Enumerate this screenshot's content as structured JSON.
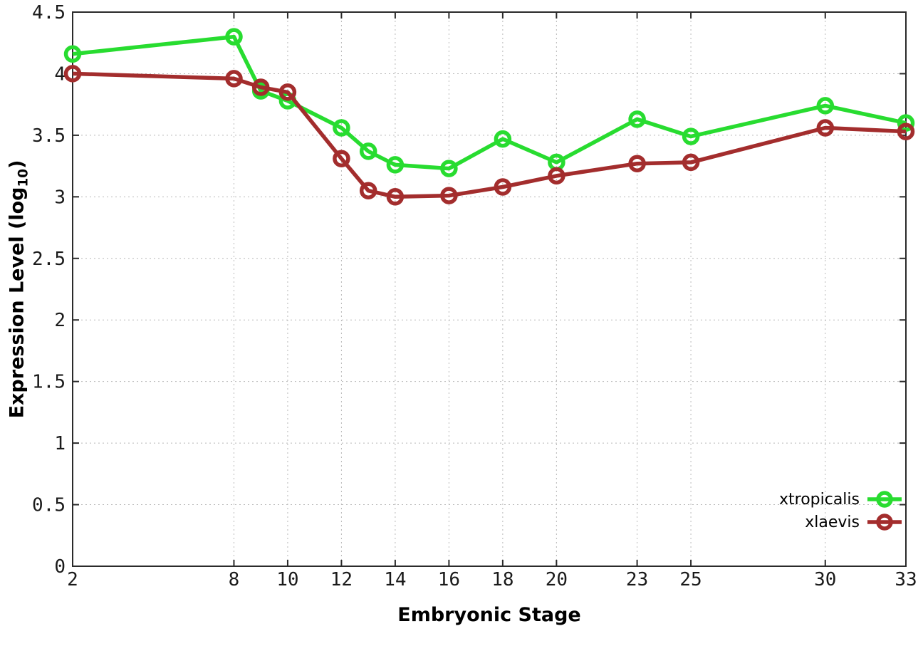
{
  "chart_data": {
    "type": "line",
    "title": "",
    "xlabel": "Embryonic Stage",
    "ylabel_prefix": "Expression Level (log",
    "ylabel_sub": "10",
    "ylabel_suffix": ")",
    "x": [
      2,
      8,
      9,
      10,
      12,
      13,
      14,
      16,
      18,
      20,
      23,
      25,
      30,
      33
    ],
    "series": [
      {
        "name": "xtropicalis",
        "color": "#28dc30",
        "values": [
          4.16,
          4.3,
          3.86,
          3.78,
          3.56,
          3.37,
          3.26,
          3.23,
          3.47,
          3.28,
          3.63,
          3.49,
          3.74,
          3.6
        ]
      },
      {
        "name": "xlaevis",
        "color": "#a32d2d",
        "values": [
          4.0,
          3.96,
          3.89,
          3.85,
          3.31,
          3.05,
          3.0,
          3.01,
          3.08,
          3.17,
          3.27,
          3.28,
          3.56,
          3.53
        ]
      }
    ],
    "xlim": [
      2,
      33
    ],
    "ylim": [
      0,
      4.5
    ],
    "xticks": {
      "values": [
        2,
        8,
        10,
        12,
        14,
        16,
        18,
        20,
        23,
        25,
        30,
        33
      ],
      "labels": [
        "2",
        "8",
        "10",
        "12",
        "14",
        "16",
        "18",
        "20",
        "23",
        "25",
        "30",
        "33"
      ]
    },
    "yticks": {
      "values": [
        0,
        0.5,
        1,
        1.5,
        2,
        2.5,
        3,
        3.5,
        4,
        4.5
      ],
      "labels": [
        "0",
        "0.5",
        "1",
        "1.5",
        "2",
        "2.5",
        "3",
        "3.5",
        "4",
        "4.5"
      ]
    },
    "grid": true,
    "legend_position": "bottom-right"
  },
  "style": {
    "background": "#ffffff",
    "border_color": "#2a2a2a",
    "grid_color": "#b8b8b8",
    "tick_text_color": "#1a1a1a"
  }
}
